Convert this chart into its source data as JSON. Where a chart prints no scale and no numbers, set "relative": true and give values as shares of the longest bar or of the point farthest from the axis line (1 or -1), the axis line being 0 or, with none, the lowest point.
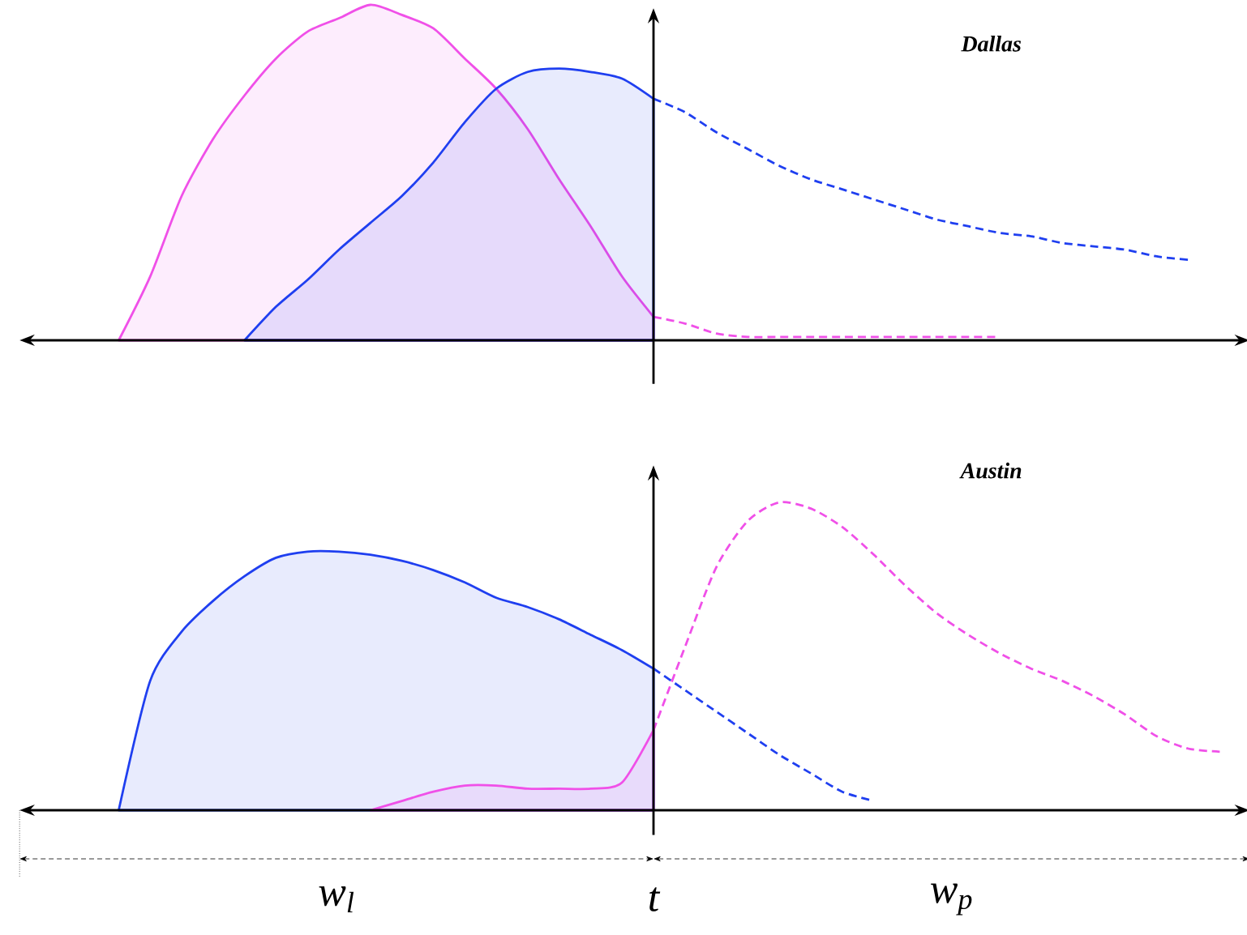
{
  "chart_data": [
    {
      "type": "area",
      "title": "Dallas",
      "relative": true,
      "categories": [
        null,
        null,
        null,
        null,
        null,
        null,
        null,
        null,
        null,
        null,
        null,
        null,
        null,
        null,
        null,
        null,
        null,
        null,
        null,
        null,
        null,
        null,
        null,
        null,
        null,
        null,
        null,
        null,
        null,
        null,
        null,
        null,
        null,
        null,
        null,
        null,
        null,
        null,
        null,
        null
      ],
      "series": [
        {
          "color": "#f050e8",
          "values": [
            null,
            null,
            null,
            0,
            0.19,
            0.43,
            0.6,
            0.73,
            0.84,
            0.92,
            0.96,
            1.0,
            0.97,
            0.93,
            0.84,
            0.75,
            0.63,
            0.48,
            0.34,
            0.19,
            0.07,
            null,
            null,
            null,
            null,
            null,
            null,
            null,
            null,
            null,
            null,
            null,
            null,
            null,
            null,
            null,
            null,
            null,
            null,
            null
          ]
        },
        {
          "type": "line",
          "line_style": "dashed",
          "color": "#f050e8",
          "values": [
            null,
            null,
            null,
            null,
            null,
            null,
            null,
            null,
            null,
            null,
            null,
            null,
            null,
            null,
            null,
            null,
            null,
            null,
            null,
            null,
            0.07,
            0.05,
            0.02,
            0.01,
            0.01,
            0.01,
            0.01,
            0.01,
            0.01,
            0.01,
            0.01,
            0.01,
            null,
            null,
            null,
            null,
            null,
            null,
            null,
            null
          ]
        },
        {
          "color": "#1f3ff0",
          "values": [
            null,
            null,
            null,
            null,
            null,
            null,
            null,
            0,
            0.1,
            0.18,
            0.27,
            0.35,
            0.43,
            0.53,
            0.65,
            0.75,
            0.8,
            0.81,
            0.8,
            0.78,
            0.72,
            null,
            null,
            null,
            null,
            null,
            null,
            null,
            null,
            null,
            null,
            null,
            null,
            null,
            null,
            null,
            null,
            null,
            null,
            null
          ]
        },
        {
          "type": "line",
          "line_style": "dashed",
          "color": "#1f3ff0",
          "values": [
            null,
            null,
            null,
            null,
            null,
            null,
            null,
            null,
            null,
            null,
            null,
            null,
            null,
            null,
            null,
            null,
            null,
            null,
            null,
            null,
            0.72,
            0.68,
            0.62,
            0.57,
            0.52,
            0.48,
            0.45,
            0.42,
            0.39,
            0.36,
            0.34,
            0.32,
            0.31,
            0.29,
            0.28,
            0.27,
            0.25,
            0.24,
            null,
            null
          ]
        }
      ]
    },
    {
      "type": "area",
      "title": "Austin",
      "relative": true,
      "categories": [
        null,
        null,
        null,
        null,
        null,
        null,
        null,
        null,
        null,
        null,
        null,
        null,
        null,
        null,
        null,
        null,
        null,
        null,
        null,
        null,
        null,
        null,
        null,
        null,
        null,
        null,
        null,
        null,
        null,
        null,
        null,
        null,
        null,
        null,
        null,
        null,
        null,
        null,
        null,
        null
      ],
      "annotations": [
        "w$_{l}$",
        "t",
        "w$_{p}$"
      ],
      "series": [
        {
          "color": "#1f3ff0",
          "values": [
            null,
            null,
            null,
            0,
            0.42,
            0.58,
            0.68,
            0.76,
            0.82,
            0.84,
            0.84,
            0.83,
            0.81,
            0.78,
            0.74,
            0.69,
            0.66,
            0.62,
            0.57,
            0.52,
            0.46,
            null,
            null,
            null,
            null,
            null,
            null,
            null,
            null,
            null,
            null,
            null,
            null,
            null,
            null,
            null,
            null,
            null,
            null,
            null
          ]
        },
        {
          "type": "line",
          "line_style": "dashed",
          "color": "#1f3ff0",
          "values": [
            null,
            null,
            null,
            null,
            null,
            null,
            null,
            null,
            null,
            null,
            null,
            null,
            null,
            null,
            null,
            null,
            null,
            null,
            null,
            null,
            0.46,
            0.39,
            0.32,
            0.25,
            0.18,
            0.12,
            0.06,
            0.03,
            null,
            null,
            null,
            null,
            null,
            null,
            null,
            null,
            null,
            null,
            null,
            null
          ]
        },
        {
          "color": "#f050e8",
          "values": [
            null,
            null,
            null,
            null,
            null,
            null,
            null,
            null,
            null,
            null,
            null,
            0,
            0.03,
            0.06,
            0.08,
            0.08,
            0.07,
            0.07,
            0.07,
            0.09,
            0.26,
            null,
            null,
            null,
            null,
            null,
            null,
            null,
            null,
            null,
            null,
            null,
            null,
            null,
            null,
            null,
            null,
            null,
            null,
            null
          ]
        },
        {
          "type": "line",
          "line_style": "dashed",
          "color": "#f050e8",
          "values": [
            null,
            null,
            null,
            null,
            null,
            null,
            null,
            null,
            null,
            null,
            null,
            null,
            null,
            null,
            null,
            null,
            null,
            null,
            null,
            null,
            0.26,
            0.53,
            0.79,
            0.94,
            1.0,
            0.98,
            0.92,
            0.83,
            0.73,
            0.64,
            0.57,
            0.51,
            0.46,
            0.42,
            0.37,
            0.31,
            0.24,
            0.2,
            0.19,
            null
          ]
        }
      ]
    }
  ]
}
